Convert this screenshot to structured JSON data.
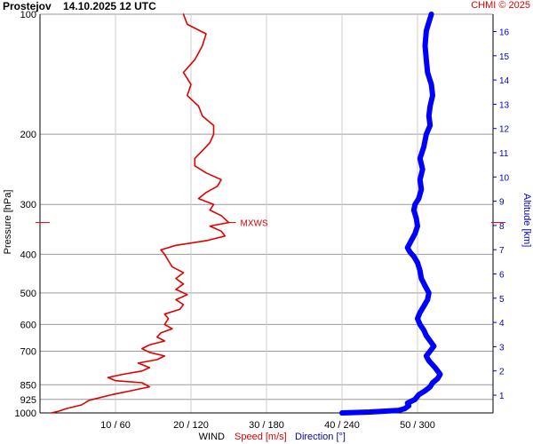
{
  "header": {
    "station": "Prostejov",
    "datetime": "14.10.2025 12 UTC",
    "copyright": "CHMI © 2025"
  },
  "chart_data": {
    "type": "line",
    "y_axis": {
      "label": "Pressure [hPa]",
      "ticks": [
        100,
        200,
        300,
        400,
        500,
        600,
        700,
        850,
        925,
        1000
      ],
      "scale": "log",
      "range": [
        100,
        1000
      ]
    },
    "x_axis": {
      "label_prefix": "WIND",
      "speed_label": "Speed [m/s]",
      "direction_label": "Direction [°]",
      "tick_labels": [
        "10 / 60",
        "20 / 120",
        "30 / 180",
        "40 / 240",
        "50 / 300"
      ],
      "speed_range": [
        0,
        60
      ],
      "direction_range": [
        0,
        360
      ]
    },
    "right_axis": {
      "label": "Altitude [km]",
      "ticks": [
        1,
        2,
        3,
        4,
        5,
        6,
        7,
        8,
        9,
        10,
        11,
        12,
        13,
        14,
        15,
        16
      ]
    },
    "max_wind": {
      "label": "MXWS",
      "pressure": 333,
      "speed": 25
    },
    "series": [
      {
        "name": "Speed [m/s]",
        "color": "#e00000",
        "points": [
          [
            1000,
            1.5
          ],
          [
            990,
            2.5
          ],
          [
            975,
            3.5
          ],
          [
            955,
            5.5
          ],
          [
            930,
            6.5
          ],
          [
            900,
            9.5
          ],
          [
            880,
            12
          ],
          [
            860,
            14.5
          ],
          [
            840,
            13.5
          ],
          [
            830,
            10
          ],
          [
            815,
            9
          ],
          [
            800,
            11
          ],
          [
            785,
            13.5
          ],
          [
            770,
            14.5
          ],
          [
            750,
            13
          ],
          [
            735,
            15.5
          ],
          [
            720,
            16.5
          ],
          [
            705,
            14.5
          ],
          [
            690,
            13.5
          ],
          [
            675,
            14.5
          ],
          [
            660,
            16.5
          ],
          [
            645,
            15.5
          ],
          [
            630,
            16
          ],
          [
            615,
            17.5
          ],
          [
            600,
            16.5
          ],
          [
            580,
            17
          ],
          [
            565,
            16.5
          ],
          [
            550,
            18.5
          ],
          [
            535,
            19
          ],
          [
            520,
            18
          ],
          [
            505,
            19.5
          ],
          [
            490,
            18
          ],
          [
            475,
            19
          ],
          [
            460,
            18
          ],
          [
            445,
            19
          ],
          [
            430,
            17.5
          ],
          [
            415,
            17
          ],
          [
            400,
            16.5
          ],
          [
            390,
            16
          ],
          [
            380,
            18
          ],
          [
            370,
            22
          ],
          [
            360,
            24.5
          ],
          [
            350,
            24
          ],
          [
            340,
            22.5
          ],
          [
            333,
            25
          ],
          [
            320,
            24
          ],
          [
            310,
            22.5
          ],
          [
            300,
            23
          ],
          [
            290,
            21
          ],
          [
            280,
            22
          ],
          [
            270,
            23.5
          ],
          [
            260,
            24
          ],
          [
            250,
            22
          ],
          [
            240,
            20.5
          ],
          [
            230,
            20.5
          ],
          [
            220,
            21.5
          ],
          [
            210,
            22.5
          ],
          [
            200,
            23
          ],
          [
            190,
            23
          ],
          [
            180,
            21.5
          ],
          [
            170,
            21
          ],
          [
            160,
            19.5
          ],
          [
            150,
            20
          ],
          [
            140,
            19
          ],
          [
            130,
            20.5
          ],
          [
            120,
            21.5
          ],
          [
            112,
            22
          ],
          [
            106,
            19.5
          ],
          [
            100,
            19
          ]
        ]
      },
      {
        "name": "Direction [°]",
        "color": "#0000ff",
        "points": [
          [
            1000,
            240
          ],
          [
            995,
            262
          ],
          [
            985,
            285
          ],
          [
            975,
            290
          ],
          [
            960,
            293
          ],
          [
            945,
            292
          ],
          [
            925,
            298
          ],
          [
            900,
            301
          ],
          [
            880,
            306
          ],
          [
            860,
            310
          ],
          [
            840,
            312
          ],
          [
            820,
            316
          ],
          [
            800,
            318
          ],
          [
            770,
            314
          ],
          [
            740,
            309
          ],
          [
            720,
            307
          ],
          [
            700,
            310
          ],
          [
            680,
            313
          ],
          [
            660,
            310
          ],
          [
            640,
            307
          ],
          [
            620,
            305
          ],
          [
            600,
            302
          ],
          [
            580,
            300
          ],
          [
            560,
            302
          ],
          [
            540,
            305
          ],
          [
            520,
            308
          ],
          [
            500,
            309
          ],
          [
            480,
            306
          ],
          [
            460,
            303
          ],
          [
            440,
            302
          ],
          [
            420,
            300
          ],
          [
            405,
            297
          ],
          [
            395,
            294
          ],
          [
            385,
            292
          ],
          [
            370,
            295
          ],
          [
            355,
            298
          ],
          [
            340,
            300
          ],
          [
            325,
            299
          ],
          [
            310,
            297
          ],
          [
            300,
            298
          ],
          [
            290,
            301
          ],
          [
            275,
            303
          ],
          [
            260,
            302
          ],
          [
            245,
            304
          ],
          [
            230,
            302
          ],
          [
            215,
            305
          ],
          [
            200,
            307
          ],
          [
            190,
            310
          ],
          [
            180,
            309
          ],
          [
            170,
            310
          ],
          [
            160,
            312
          ],
          [
            150,
            311
          ],
          [
            140,
            308
          ],
          [
            130,
            307
          ],
          [
            120,
            306
          ],
          [
            110,
            307
          ],
          [
            100,
            311
          ]
        ]
      }
    ]
  }
}
